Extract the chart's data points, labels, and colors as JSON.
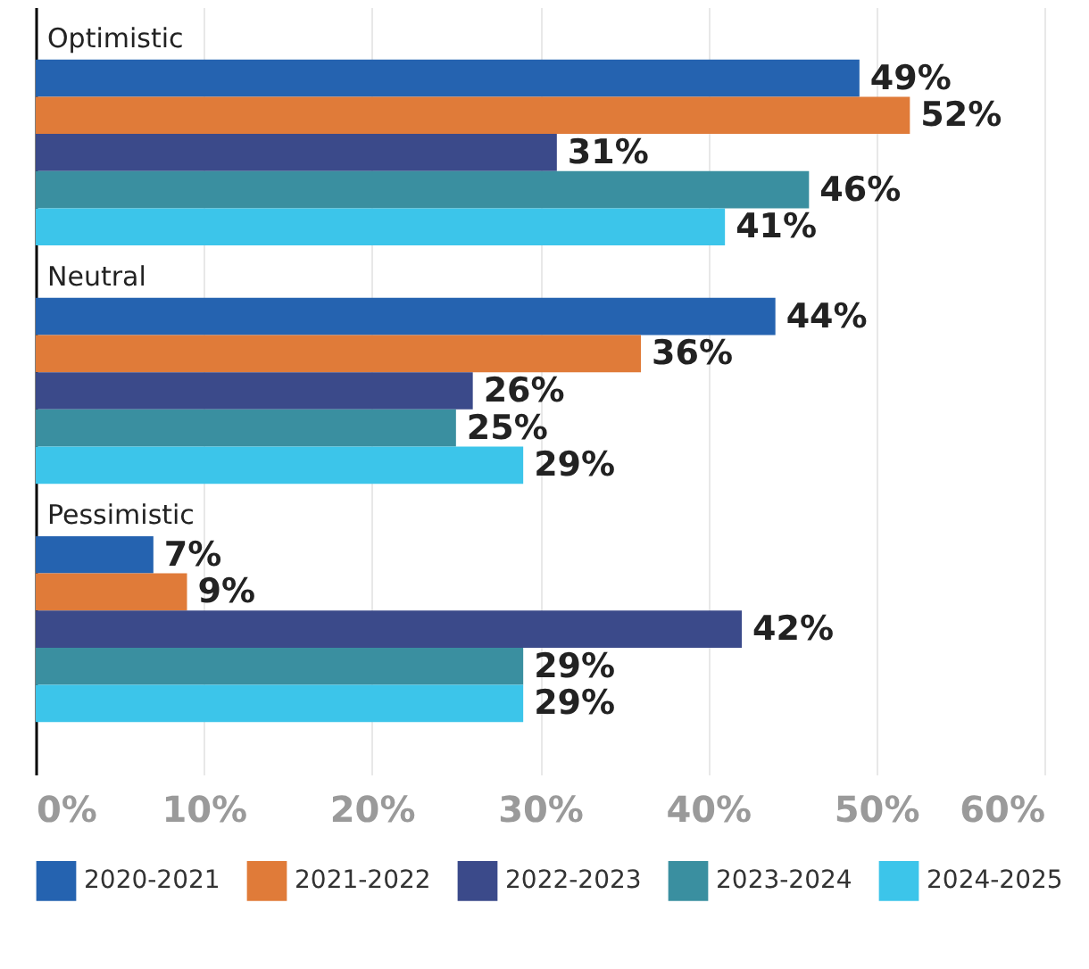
{
  "chart_data": {
    "type": "bar",
    "orientation": "horizontal",
    "categories": [
      "Optimistic",
      "Neutral",
      "Pessimistic"
    ],
    "series": [
      {
        "name": "2020-2021",
        "color": "#2563b0",
        "values": [
          49,
          44,
          7
        ],
        "value_labels": [
          "49%",
          "44%",
          "7%"
        ]
      },
      {
        "name": "2021-2022",
        "color": "#e07b39",
        "values": [
          52,
          36,
          9
        ],
        "value_labels": [
          "52%",
          "36%",
          "9%"
        ]
      },
      {
        "name": "2022-2023",
        "color": "#3b4a8a",
        "values": [
          31,
          26,
          42
        ],
        "value_labels": [
          "31%",
          "26%",
          "42%"
        ]
      },
      {
        "name": "2023-2024",
        "color": "#3a8fa0",
        "values": [
          46,
          25,
          29
        ],
        "value_labels": [
          "46%",
          "25%",
          "29%"
        ]
      },
      {
        "name": "2024-2025",
        "color": "#3cc5ea",
        "values": [
          41,
          29,
          29
        ],
        "value_labels": [
          "41%",
          "29%",
          "29%"
        ]
      }
    ],
    "xlim": [
      0,
      60
    ],
    "xticks": [
      {
        "value": 0,
        "label": "0%"
      },
      {
        "value": 10,
        "label": "10%"
      },
      {
        "value": 20,
        "label": "20%"
      },
      {
        "value": 30,
        "label": "30%"
      },
      {
        "value": 40,
        "label": "40%"
      },
      {
        "value": 50,
        "label": "50%"
      },
      {
        "value": 60,
        "label": "60%"
      }
    ],
    "grid": "x",
    "legend": "bottom"
  }
}
